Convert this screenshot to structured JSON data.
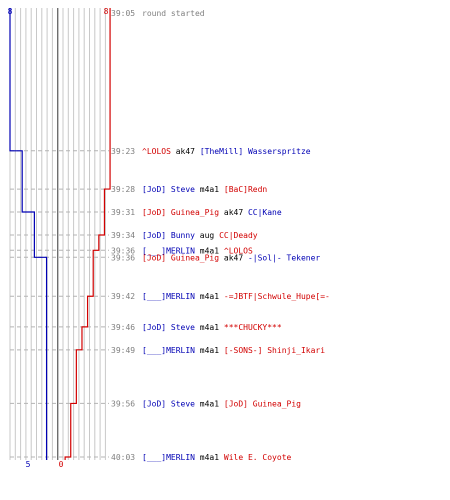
{
  "chart_data": {
    "type": "line",
    "title": "",
    "y_unit": "time (mm:ss)",
    "teams": {
      "blue": {
        "color": "#0000b4",
        "start_count": 8,
        "end_count": 5
      },
      "red": {
        "color": "#d20000",
        "start_count": 8,
        "end_count": 0
      }
    },
    "grid_columns": 18,
    "events": [
      {
        "time": "39:05",
        "time_sec": 0,
        "text": "round started",
        "type": "start"
      },
      {
        "time": "39:23",
        "time_sec": 18,
        "killer": "^LOLOS",
        "killer_team": "red",
        "weapon": "ak47",
        "victim": "[TheMill] Wasserspritze",
        "victim_team": "blue",
        "blue": 7,
        "red": 8
      },
      {
        "time": "39:28",
        "time_sec": 23,
        "killer": "[JoD] Steve",
        "killer_team": "blue",
        "weapon": "m4a1",
        "victim": "[BaC]Redn",
        "victim_team": "red",
        "blue": 7,
        "red": 7
      },
      {
        "time": "39:31",
        "time_sec": 26,
        "killer": "[JoD] Guinea_Pig",
        "killer_team": "red",
        "weapon": "ak47",
        "victim": "CC|Kane",
        "victim_team": "blue",
        "blue": 6,
        "red": 7
      },
      {
        "time": "39:34",
        "time_sec": 29,
        "killer": "[JoD] Bunny",
        "killer_team": "blue",
        "weapon": "aug",
        "victim": "CC|Deady",
        "victim_team": "red",
        "blue": 6,
        "red": 6
      },
      {
        "time": "39:36",
        "time_sec": 31,
        "killer": "[___]MERLIN",
        "killer_team": "blue",
        "weapon": "m4a1",
        "victim": "^LOLOS",
        "victim_team": "red",
        "blue": 6,
        "red": 5
      },
      {
        "time": "39:36",
        "time_sec": 31,
        "killer": "[JoD] Guinea_Pig",
        "killer_team": "red",
        "weapon": "ak47",
        "victim": "-|Sol|- Tekener",
        "victim_team": "blue",
        "blue": 5,
        "red": 5
      },
      {
        "time": "39:42",
        "time_sec": 37,
        "killer": "[___]MERLIN",
        "killer_team": "blue",
        "weapon": "m4a1",
        "victim": "-=JBTF|Schwule_Hupe[=-",
        "victim_team": "red",
        "blue": 5,
        "red": 4
      },
      {
        "time": "39:46",
        "time_sec": 41,
        "killer": "[JoD] Steve",
        "killer_team": "blue",
        "weapon": "m4a1",
        "victim": "***CHUCKY***",
        "victim_team": "red",
        "blue": 5,
        "red": 3
      },
      {
        "time": "39:49",
        "time_sec": 44,
        "killer": "[___]MERLIN",
        "killer_team": "blue",
        "weapon": "m4a1",
        "victim": "[-SONS-] Shinji_Ikari",
        "victim_team": "red",
        "blue": 5,
        "red": 2
      },
      {
        "time": "39:56",
        "time_sec": 51,
        "killer": "[JoD] Steve",
        "killer_team": "blue",
        "weapon": "m4a1",
        "victim": "[JoD] Guinea_Pig",
        "victim_team": "red",
        "blue": 5,
        "red": 1
      },
      {
        "time": "40:03",
        "time_sec": 58,
        "killer": "[___]MERLIN",
        "killer_team": "blue",
        "weapon": "m4a1",
        "victim": "Wile E. Coyote",
        "victim_team": "red",
        "blue": 5,
        "red": 0
      }
    ]
  }
}
